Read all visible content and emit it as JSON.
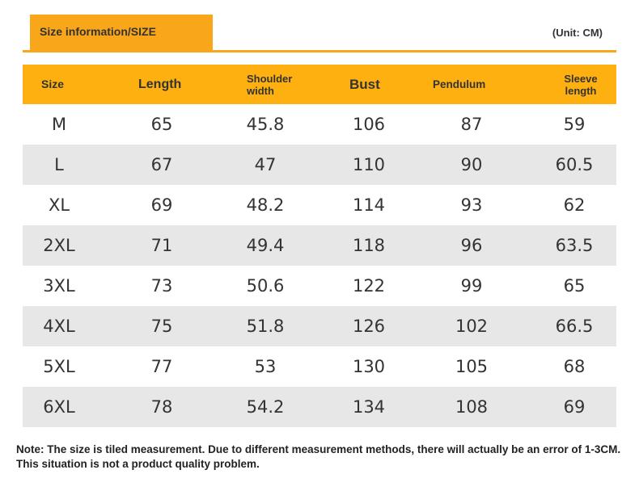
{
  "header": {
    "title": "Size information/SIZE",
    "unit": "(Unit: CM)"
  },
  "table": {
    "columns": [
      "Size",
      "Length",
      "Shoulder width",
      "Bust",
      "Pendulum",
      "Sleeve length"
    ],
    "rows": [
      [
        "M",
        "65",
        "45.8",
        "106",
        "87",
        "59"
      ],
      [
        "L",
        "67",
        "47",
        "110",
        "90",
        "60.5"
      ],
      [
        "XL",
        "69",
        "48.2",
        "114",
        "93",
        "62"
      ],
      [
        "2XL",
        "71",
        "49.4",
        "118",
        "96",
        "63.5"
      ],
      [
        "3XL",
        "73",
        "50.6",
        "122",
        "99",
        "65"
      ],
      [
        "4XL",
        "75",
        "51.8",
        "126",
        "102",
        "66.5"
      ],
      [
        "5XL",
        "77",
        "53",
        "130",
        "105",
        "68"
      ],
      [
        "6XL",
        "78",
        "54.2",
        "134",
        "108",
        "69"
      ]
    ]
  },
  "note": "Note: The size is tiled measurement. Due to different measurement methods, there will actually be an error of 1-3CM. This situation is not a product quality problem.",
  "colors": {
    "accent": "#fdb010",
    "row_alt": "#e7e7e7"
  }
}
